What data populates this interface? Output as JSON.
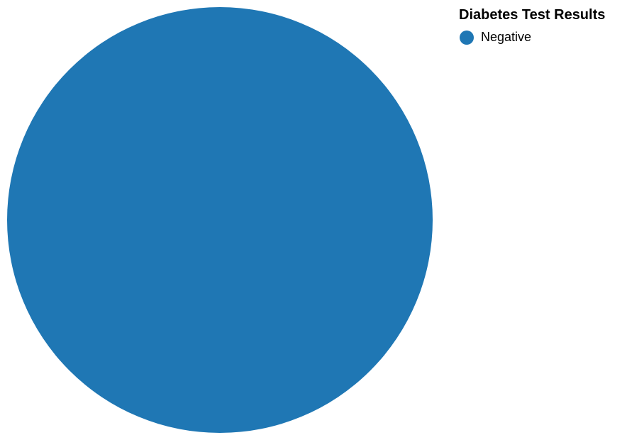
{
  "chart_data": {
    "type": "pie",
    "title": "",
    "legend_title": "Diabetes Test Results",
    "legend_position": "top-right",
    "categories": [
      "Negative"
    ],
    "values": [
      1
    ],
    "colors": [
      "#1f77b4"
    ]
  },
  "legend": {
    "title": "Diabetes Test Results",
    "items": [
      {
        "label": "Negative",
        "color": "#1f77b4"
      }
    ]
  }
}
